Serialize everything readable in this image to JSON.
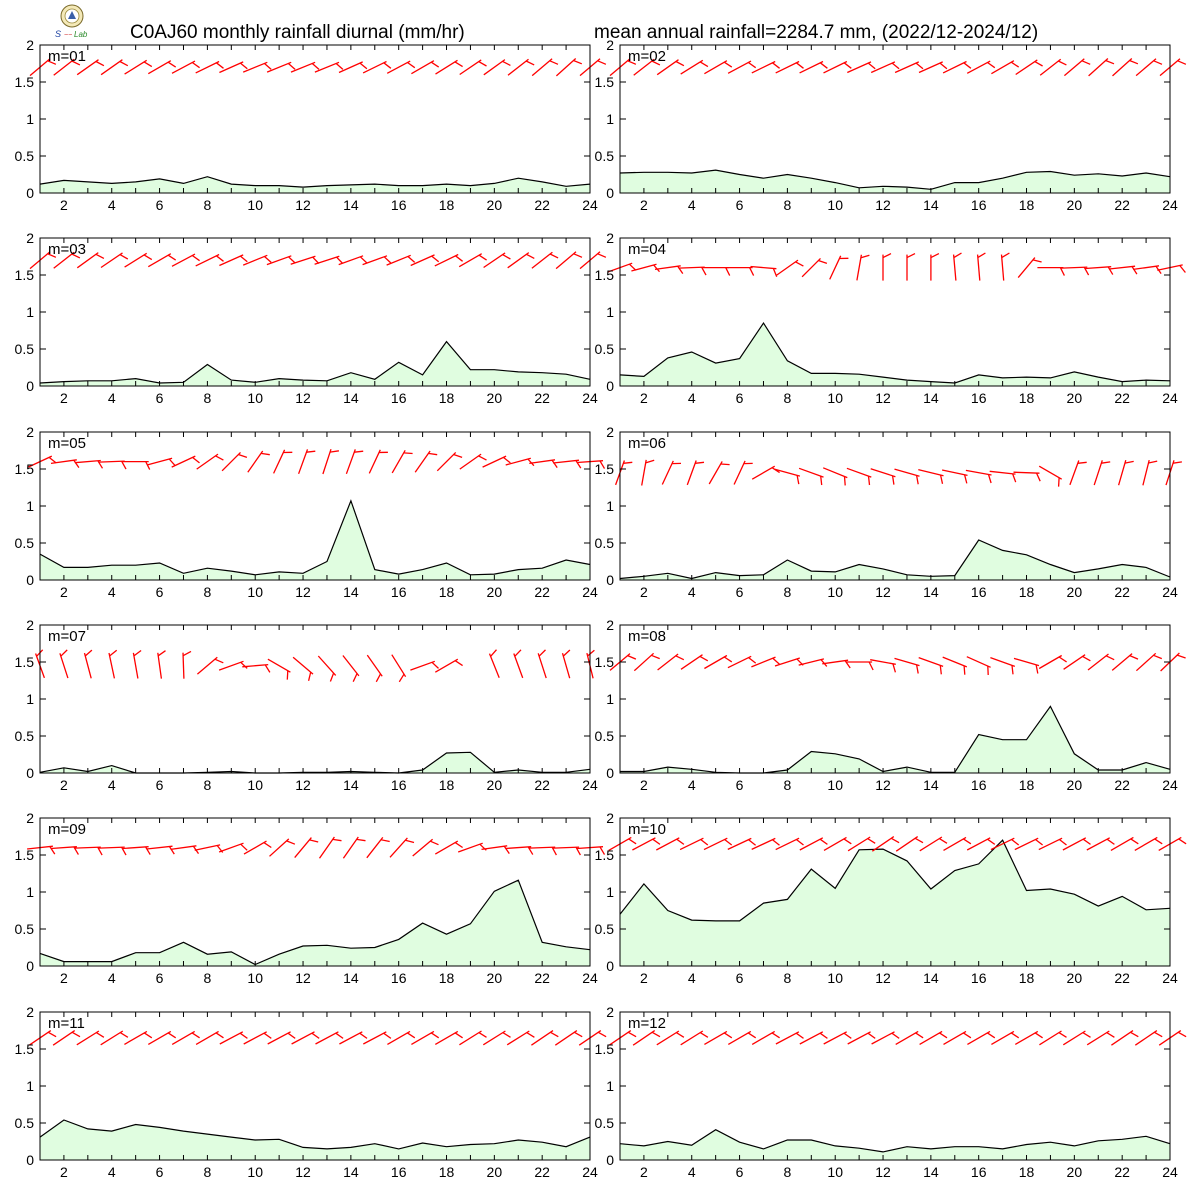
{
  "title_left": "C0AJ60 monthly rainfall diurnal (mm/hr)",
  "title_right": "mean annual rainfall=2284.7 mm, (2022/12-2024/12)",
  "logo": {
    "name": "lab-logo",
    "text": "Lab"
  },
  "colors": {
    "fill": "#e0fde0",
    "line": "#000000",
    "barb": "#ff0000"
  },
  "chart_data": [
    {
      "type": "area",
      "label": "m=01",
      "x": [
        1,
        2,
        3,
        4,
        5,
        6,
        7,
        8,
        9,
        10,
        11,
        12,
        13,
        14,
        15,
        16,
        17,
        18,
        19,
        20,
        21,
        22,
        23,
        24
      ],
      "values": [
        0.12,
        0.17,
        0.15,
        0.13,
        0.15,
        0.19,
        0.13,
        0.22,
        0.12,
        0.1,
        0.1,
        0.08,
        0.1,
        0.11,
        0.12,
        0.1,
        0.1,
        0.12,
        0.1,
        0.13,
        0.2,
        0.15,
        0.09,
        0.12
      ],
      "barb_dir": [
        230,
        232,
        235,
        235,
        238,
        240,
        242,
        244,
        246,
        248,
        248,
        248,
        248,
        246,
        244,
        242,
        240,
        238,
        236,
        234,
        232,
        230,
        228,
        230
      ],
      "barb_y": 1.7,
      "xlim": [
        1,
        24
      ],
      "ylim": [
        0,
        2
      ],
      "xticks": [
        2,
        4,
        6,
        8,
        10,
        12,
        14,
        16,
        18,
        20,
        22,
        24
      ],
      "yticks": [
        0,
        0.5,
        1,
        1.5,
        2
      ]
    },
    {
      "type": "area",
      "label": "m=02",
      "x": [
        1,
        2,
        3,
        4,
        5,
        6,
        7,
        8,
        9,
        10,
        11,
        12,
        13,
        14,
        15,
        16,
        17,
        18,
        19,
        20,
        21,
        22,
        23,
        24
      ],
      "values": [
        0.27,
        0.28,
        0.28,
        0.27,
        0.31,
        0.25,
        0.2,
        0.25,
        0.2,
        0.14,
        0.07,
        0.09,
        0.08,
        0.05,
        0.14,
        0.14,
        0.2,
        0.28,
        0.29,
        0.24,
        0.26,
        0.23,
        0.27,
        0.22
      ],
      "barb_dir": [
        230,
        232,
        235,
        238,
        240,
        242,
        244,
        244,
        244,
        244,
        246,
        246,
        246,
        246,
        244,
        242,
        240,
        236,
        232,
        230,
        228,
        228,
        230,
        230
      ],
      "barb_y": 1.7,
      "xlim": [
        1,
        24
      ],
      "ylim": [
        0,
        2
      ],
      "xticks": [
        2,
        4,
        6,
        8,
        10,
        12,
        14,
        16,
        18,
        20,
        22,
        24
      ],
      "yticks": [
        0,
        0.5,
        1,
        1.5,
        2
      ]
    },
    {
      "type": "area",
      "label": "m=03",
      "x": [
        1,
        2,
        3,
        4,
        5,
        6,
        7,
        8,
        9,
        10,
        11,
        12,
        13,
        14,
        15,
        16,
        17,
        18,
        19,
        20,
        21,
        22,
        23,
        24
      ],
      "values": [
        0.04,
        0.06,
        0.07,
        0.07,
        0.1,
        0.04,
        0.05,
        0.29,
        0.08,
        0.05,
        0.1,
        0.08,
        0.07,
        0.18,
        0.09,
        0.32,
        0.15,
        0.6,
        0.22,
        0.22,
        0.19,
        0.18,
        0.16,
        0.09
      ],
      "barb_dir": [
        230,
        232,
        234,
        236,
        238,
        240,
        242,
        244,
        246,
        248,
        250,
        252,
        252,
        250,
        250,
        248,
        246,
        244,
        240,
        236,
        234,
        232,
        230,
        230
      ],
      "barb_y": 1.7,
      "xlim": [
        1,
        24
      ],
      "ylim": [
        0,
        2
      ],
      "xticks": [
        2,
        4,
        6,
        8,
        10,
        12,
        14,
        16,
        18,
        20,
        22,
        24
      ],
      "yticks": [
        0,
        0.5,
        1,
        1.5,
        2
      ]
    },
    {
      "type": "area",
      "label": "m=04",
      "x": [
        1,
        2,
        3,
        4,
        5,
        6,
        7,
        8,
        9,
        10,
        11,
        12,
        13,
        14,
        15,
        16,
        17,
        18,
        19,
        20,
        21,
        22,
        23,
        24
      ],
      "values": [
        0.15,
        0.13,
        0.38,
        0.46,
        0.31,
        0.37,
        0.85,
        0.34,
        0.17,
        0.17,
        0.16,
        0.12,
        0.08,
        0.06,
        0.04,
        0.15,
        0.11,
        0.12,
        0.11,
        0.19,
        0.12,
        0.06,
        0.08,
        0.07
      ],
      "barb_dir": [
        250,
        255,
        262,
        268,
        270,
        270,
        275,
        235,
        225,
        205,
        190,
        180,
        180,
        180,
        175,
        175,
        175,
        220,
        270,
        268,
        266,
        264,
        262,
        258
      ],
      "barb_y": 1.6,
      "xlim": [
        1,
        24
      ],
      "ylim": [
        0,
        2
      ],
      "xticks": [
        2,
        4,
        6,
        8,
        10,
        12,
        14,
        16,
        18,
        20,
        22,
        24
      ],
      "yticks": [
        0,
        0.5,
        1,
        1.5,
        2
      ]
    },
    {
      "type": "area",
      "label": "m=05",
      "x": [
        1,
        2,
        3,
        4,
        5,
        6,
        7,
        8,
        9,
        10,
        11,
        12,
        13,
        14,
        15,
        16,
        17,
        18,
        19,
        20,
        21,
        22,
        23,
        24
      ],
      "values": [
        0.35,
        0.17,
        0.17,
        0.2,
        0.2,
        0.23,
        0.09,
        0.16,
        0.12,
        0.07,
        0.11,
        0.09,
        0.25,
        1.07,
        0.14,
        0.08,
        0.14,
        0.23,
        0.07,
        0.08,
        0.14,
        0.16,
        0.27,
        0.21
      ],
      "barb_dir": [
        245,
        262,
        265,
        268,
        270,
        255,
        245,
        235,
        225,
        215,
        205,
        200,
        198,
        200,
        205,
        210,
        215,
        225,
        235,
        245,
        255,
        262,
        264,
        266
      ],
      "barb_y": 1.6,
      "xlim": [
        1,
        24
      ],
      "ylim": [
        0,
        2
      ],
      "xticks": [
        2,
        4,
        6,
        8,
        10,
        12,
        14,
        16,
        18,
        20,
        22,
        24
      ],
      "yticks": [
        0,
        0.5,
        1,
        1.5,
        2
      ]
    },
    {
      "type": "area",
      "label": "m=06",
      "x": [
        1,
        2,
        3,
        4,
        5,
        6,
        7,
        8,
        9,
        10,
        11,
        12,
        13,
        14,
        15,
        16,
        17,
        18,
        19,
        20,
        21,
        22,
        23,
        24
      ],
      "values": [
        0.02,
        0.05,
        0.09,
        0.02,
        0.1,
        0.06,
        0.07,
        0.27,
        0.12,
        0.11,
        0.21,
        0.15,
        0.07,
        0.05,
        0.06,
        0.54,
        0.4,
        0.34,
        0.21,
        0.1,
        0.15,
        0.21,
        0.17,
        0.04
      ],
      "barb_dir": [
        200,
        190,
        205,
        200,
        210,
        205,
        240,
        285,
        290,
        292,
        290,
        288,
        286,
        284,
        282,
        280,
        276,
        272,
        300,
        200,
        198,
        196,
        194,
        198
      ],
      "barb_y": 1.45,
      "xlim": [
        1,
        24
      ],
      "ylim": [
        0,
        2
      ],
      "xticks": [
        2,
        4,
        6,
        8,
        10,
        12,
        14,
        16,
        18,
        20,
        22,
        24
      ],
      "yticks": [
        0,
        0.5,
        1,
        1.5,
        2
      ]
    },
    {
      "type": "area",
      "label": "m=07",
      "x": [
        1,
        2,
        3,
        4,
        5,
        6,
        7,
        8,
        9,
        10,
        11,
        12,
        13,
        14,
        15,
        16,
        17,
        18,
        19,
        20,
        21,
        22,
        23,
        24
      ],
      "values": [
        0.01,
        0.07,
        0.02,
        0.1,
        0.0,
        0.0,
        0.0,
        0.01,
        0.02,
        0.0,
        0.0,
        0.01,
        0.01,
        0.02,
        0.01,
        0.0,
        0.04,
        0.27,
        0.28,
        0.01,
        0.04,
        0.01,
        0.01,
        0.05
      ],
      "barb_dir": [
        160,
        162,
        165,
        168,
        170,
        172,
        178,
        230,
        250,
        265,
        300,
        310,
        318,
        322,
        325,
        328,
        250,
        240,
        null,
        158,
        160,
        162,
        164,
        166
      ],
      "barb_y": 1.45,
      "xlim": [
        1,
        24
      ],
      "ylim": [
        0,
        2
      ],
      "xticks": [
        2,
        4,
        6,
        8,
        10,
        12,
        14,
        16,
        18,
        20,
        22,
        24
      ],
      "yticks": [
        0,
        0.5,
        1,
        1.5,
        2
      ]
    },
    {
      "type": "area",
      "label": "m=08",
      "x": [
        1,
        2,
        3,
        4,
        5,
        6,
        7,
        8,
        9,
        10,
        11,
        12,
        13,
        14,
        15,
        16,
        17,
        18,
        19,
        20,
        21,
        22,
        23,
        24
      ],
      "values": [
        0.02,
        0.02,
        0.08,
        0.05,
        0.01,
        0.0,
        0.0,
        0.04,
        0.29,
        0.26,
        0.19,
        0.02,
        0.08,
        0.01,
        0.01,
        0.52,
        0.45,
        0.45,
        0.9,
        0.26,
        0.04,
        0.04,
        0.14,
        0.05
      ],
      "barb_dir": [
        230,
        228,
        232,
        236,
        240,
        244,
        248,
        252,
        256,
        262,
        270,
        280,
        286,
        290,
        292,
        294,
        290,
        286,
        240,
        236,
        232,
        230,
        228,
        226
      ],
      "barb_y": 1.5,
      "xlim": [
        1,
        24
      ],
      "ylim": [
        0,
        2
      ],
      "xticks": [
        2,
        4,
        6,
        8,
        10,
        12,
        14,
        16,
        18,
        20,
        22,
        24
      ],
      "yticks": [
        0,
        0.5,
        1,
        1.5,
        2
      ]
    },
    {
      "type": "area",
      "label": "m=09",
      "x": [
        1,
        2,
        3,
        4,
        5,
        6,
        7,
        8,
        9,
        10,
        11,
        12,
        13,
        14,
        15,
        16,
        17,
        18,
        19,
        20,
        21,
        22,
        23,
        24
      ],
      "values": [
        0.17,
        0.06,
        0.06,
        0.06,
        0.18,
        0.18,
        0.32,
        0.16,
        0.19,
        0.02,
        0.16,
        0.27,
        0.28,
        0.24,
        0.25,
        0.36,
        0.58,
        0.43,
        0.57,
        1.01,
        1.16,
        0.32,
        0.26,
        0.22
      ],
      "barb_dir": [
        264,
        266,
        268,
        268,
        266,
        264,
        262,
        258,
        250,
        240,
        228,
        220,
        215,
        215,
        218,
        222,
        230,
        240,
        250,
        262,
        266,
        268,
        268,
        266
      ],
      "barb_y": 1.6,
      "xlim": [
        1,
        24
      ],
      "ylim": [
        0,
        2
      ],
      "xticks": [
        2,
        4,
        6,
        8,
        10,
        12,
        14,
        16,
        18,
        20,
        22,
        24
      ],
      "yticks": [
        0,
        0.5,
        1,
        1.5,
        2
      ]
    },
    {
      "type": "area",
      "label": "m=10",
      "x": [
        1,
        2,
        3,
        4,
        5,
        6,
        7,
        8,
        9,
        10,
        11,
        12,
        13,
        14,
        15,
        16,
        17,
        18,
        19,
        20,
        21,
        22,
        23,
        24
      ],
      "values": [
        0.7,
        1.11,
        0.75,
        0.62,
        0.61,
        0.61,
        0.85,
        0.9,
        1.31,
        1.05,
        1.57,
        1.58,
        1.42,
        1.04,
        1.29,
        1.38,
        1.7,
        1.02,
        1.04,
        0.97,
        0.81,
        0.94,
        0.76,
        0.78
      ],
      "barb_dir": [
        240,
        242,
        242,
        244,
        244,
        245,
        245,
        244,
        242,
        240,
        238,
        236,
        236,
        238,
        240,
        242,
        244,
        244,
        244,
        242,
        242,
        240,
        240,
        240
      ],
      "barb_y": 1.65,
      "xlim": [
        1,
        24
      ],
      "ylim": [
        0,
        2
      ],
      "xticks": [
        2,
        4,
        6,
        8,
        10,
        12,
        14,
        16,
        18,
        20,
        22,
        24
      ],
      "yticks": [
        0,
        0.5,
        1,
        1.5,
        2
      ]
    },
    {
      "type": "area",
      "label": "m=11",
      "x": [
        1,
        2,
        3,
        4,
        5,
        6,
        7,
        8,
        9,
        10,
        11,
        12,
        13,
        14,
        15,
        16,
        17,
        18,
        19,
        20,
        21,
        22,
        23,
        24
      ],
      "values": [
        0.31,
        0.54,
        0.42,
        0.39,
        0.48,
        0.44,
        0.39,
        0.35,
        0.31,
        0.27,
        0.28,
        0.17,
        0.15,
        0.17,
        0.22,
        0.15,
        0.23,
        0.18,
        0.21,
        0.22,
        0.27,
        0.24,
        0.18,
        0.31
      ],
      "barb_dir": [
        236,
        236,
        238,
        238,
        240,
        240,
        240,
        240,
        242,
        242,
        242,
        242,
        242,
        242,
        242,
        240,
        240,
        240,
        238,
        238,
        238,
        236,
        236,
        236
      ],
      "barb_y": 1.65,
      "xlim": [
        1,
        24
      ],
      "ylim": [
        0,
        2
      ],
      "xticks": [
        2,
        4,
        6,
        8,
        10,
        12,
        14,
        16,
        18,
        20,
        22,
        24
      ],
      "yticks": [
        0,
        0.5,
        1,
        1.5,
        2
      ]
    },
    {
      "type": "area",
      "label": "m=12",
      "x": [
        1,
        2,
        3,
        4,
        5,
        6,
        7,
        8,
        9,
        10,
        11,
        12,
        13,
        14,
        15,
        16,
        17,
        18,
        19,
        20,
        21,
        22,
        23,
        24
      ],
      "values": [
        0.22,
        0.19,
        0.25,
        0.2,
        0.41,
        0.24,
        0.15,
        0.27,
        0.27,
        0.19,
        0.16,
        0.11,
        0.18,
        0.15,
        0.18,
        0.18,
        0.15,
        0.21,
        0.24,
        0.19,
        0.26,
        0.28,
        0.32,
        0.22
      ],
      "barb_dir": [
        236,
        236,
        238,
        238,
        240,
        240,
        240,
        242,
        242,
        242,
        242,
        242,
        240,
        240,
        240,
        240,
        240,
        240,
        238,
        238,
        238,
        236,
        236,
        236
      ],
      "barb_y": 1.65,
      "xlim": [
        1,
        24
      ],
      "ylim": [
        0,
        2
      ],
      "xticks": [
        2,
        4,
        6,
        8,
        10,
        12,
        14,
        16,
        18,
        20,
        22,
        24
      ],
      "yticks": [
        0,
        0.5,
        1,
        1.5,
        2
      ]
    }
  ]
}
